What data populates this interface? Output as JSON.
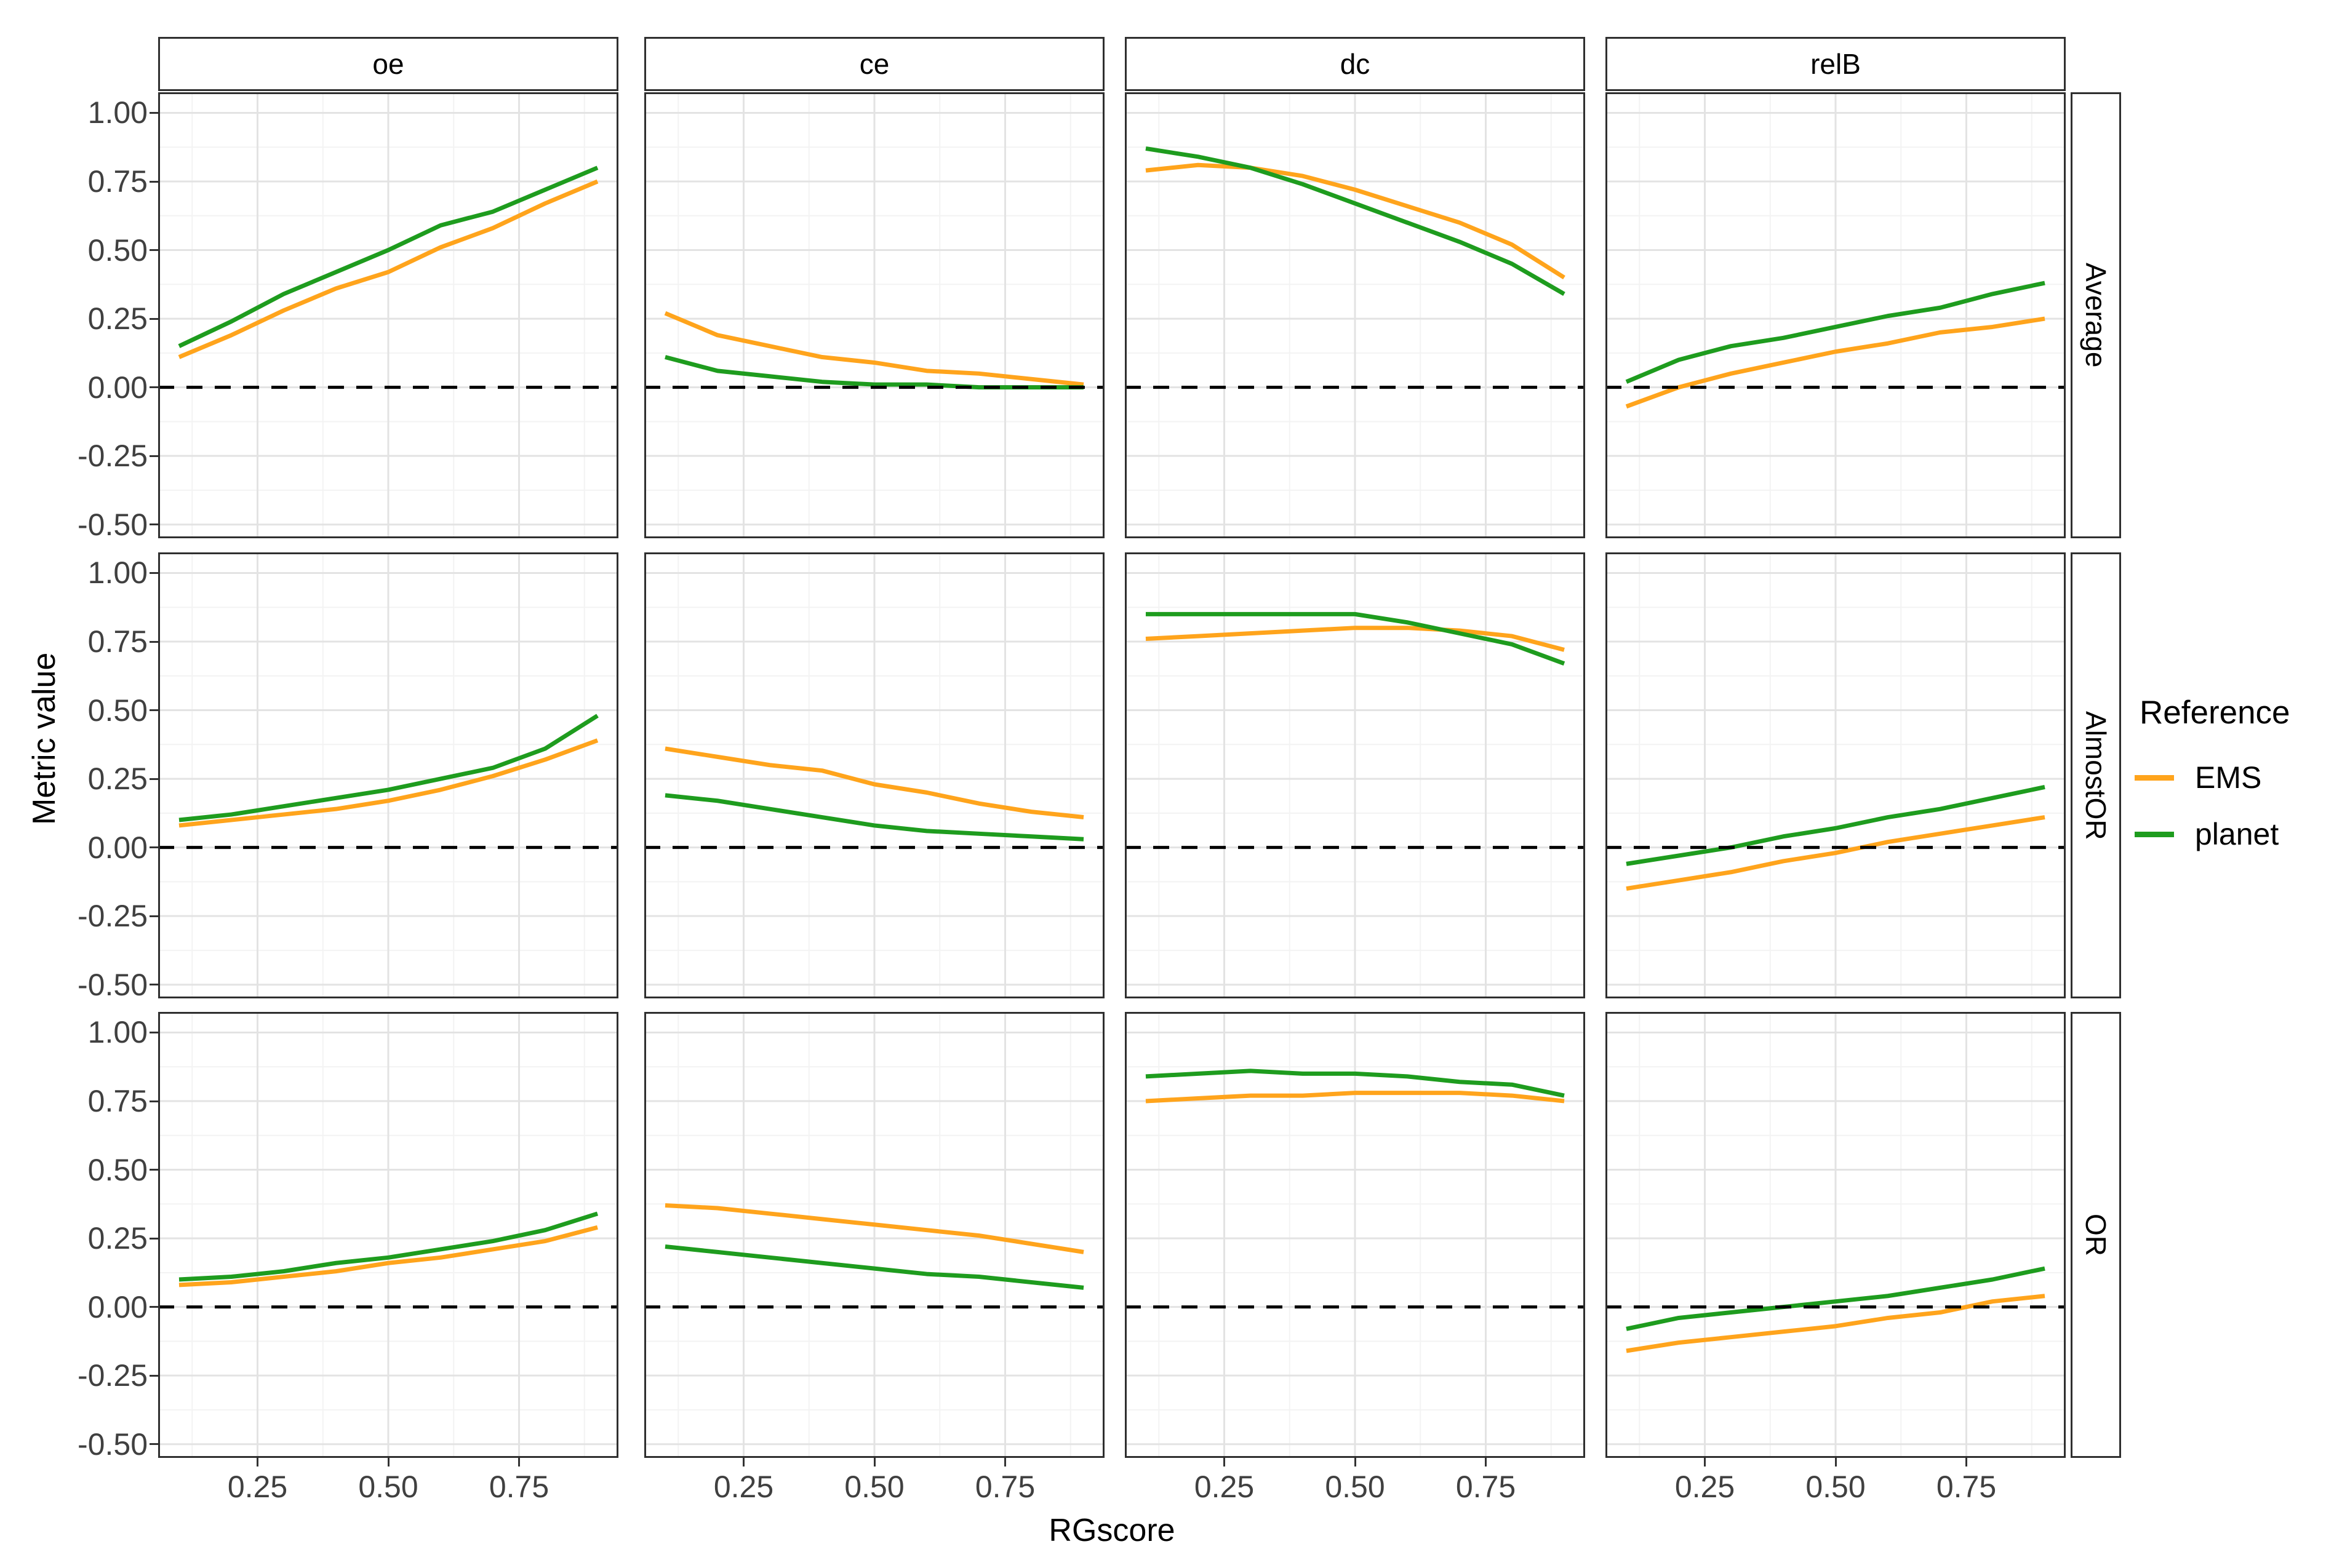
{
  "figure": {
    "x_axis_title": "RGscore",
    "y_axis_title": "Metric value"
  },
  "chart_data": {
    "type": "line",
    "title": "",
    "xlabel": "RGscore",
    "ylabel": "Metric value",
    "grid": true,
    "legend_position": "right",
    "x": [
      0.1,
      0.2,
      0.3,
      0.4,
      0.5,
      0.6,
      0.7,
      0.8,
      0.9
    ],
    "xlim": [
      0.06,
      0.94
    ],
    "ylim": [
      -0.55,
      1.075
    ],
    "x_ticks": {
      "values": [
        0.25,
        0.5,
        0.75
      ],
      "labels": [
        "0.25",
        "0.50",
        "0.75"
      ]
    },
    "y_ticks": {
      "values": [
        1.0,
        0.75,
        0.5,
        0.25,
        0.0,
        -0.25,
        -0.5
      ],
      "labels": [
        "1.00",
        "0.75",
        "0.50",
        "0.25",
        "0.00",
        "-0.25",
        "-0.50"
      ]
    },
    "zero_reference_line": 0.0,
    "facet_cols": [
      "oe",
      "ce",
      "dc",
      "relB"
    ],
    "facet_rows": [
      "Average",
      "AlmostOR",
      "OR"
    ],
    "legend": {
      "title": "Reference",
      "entries": [
        {
          "name": "EMS",
          "label": "EMS",
          "color": "#FFA41C"
        },
        {
          "name": "planet",
          "label": "planet",
          "color": "#1E9C1E"
        }
      ]
    },
    "panels": [
      {
        "row": "Average",
        "col": "oe",
        "series": {
          "EMS": [
            0.11,
            0.19,
            0.28,
            0.36,
            0.42,
            0.51,
            0.58,
            0.67,
            0.75
          ],
          "planet": [
            0.15,
            0.24,
            0.34,
            0.42,
            0.5,
            0.59,
            0.64,
            0.72,
            0.8
          ]
        }
      },
      {
        "row": "Average",
        "col": "ce",
        "series": {
          "EMS": [
            0.27,
            0.19,
            0.15,
            0.11,
            0.09,
            0.06,
            0.05,
            0.03,
            0.01
          ],
          "planet": [
            0.11,
            0.06,
            0.04,
            0.02,
            0.01,
            0.01,
            0.0,
            0.0,
            0.0
          ]
        }
      },
      {
        "row": "Average",
        "col": "dc",
        "series": {
          "EMS": [
            0.79,
            0.81,
            0.8,
            0.77,
            0.72,
            0.66,
            0.6,
            0.52,
            0.4
          ],
          "planet": [
            0.87,
            0.84,
            0.8,
            0.74,
            0.67,
            0.6,
            0.53,
            0.45,
            0.34
          ]
        }
      },
      {
        "row": "Average",
        "col": "relB",
        "series": {
          "EMS": [
            -0.07,
            0.0,
            0.05,
            0.09,
            0.13,
            0.16,
            0.2,
            0.22,
            0.25
          ],
          "planet": [
            0.02,
            0.1,
            0.15,
            0.18,
            0.22,
            0.26,
            0.29,
            0.34,
            0.38
          ]
        }
      },
      {
        "row": "AlmostOR",
        "col": "oe",
        "series": {
          "EMS": [
            0.08,
            0.1,
            0.12,
            0.14,
            0.17,
            0.21,
            0.26,
            0.32,
            0.39
          ],
          "planet": [
            0.1,
            0.12,
            0.15,
            0.18,
            0.21,
            0.25,
            0.29,
            0.36,
            0.48
          ]
        }
      },
      {
        "row": "AlmostOR",
        "col": "ce",
        "series": {
          "EMS": [
            0.36,
            0.33,
            0.3,
            0.28,
            0.23,
            0.2,
            0.16,
            0.13,
            0.11
          ],
          "planet": [
            0.19,
            0.17,
            0.14,
            0.11,
            0.08,
            0.06,
            0.05,
            0.04,
            0.03
          ]
        }
      },
      {
        "row": "AlmostOR",
        "col": "dc",
        "series": {
          "EMS": [
            0.76,
            0.77,
            0.78,
            0.79,
            0.8,
            0.8,
            0.79,
            0.77,
            0.72
          ],
          "planet": [
            0.85,
            0.85,
            0.85,
            0.85,
            0.85,
            0.82,
            0.78,
            0.74,
            0.67
          ]
        }
      },
      {
        "row": "AlmostOR",
        "col": "relB",
        "series": {
          "EMS": [
            -0.15,
            -0.12,
            -0.09,
            -0.05,
            -0.02,
            0.02,
            0.05,
            0.08,
            0.11
          ],
          "planet": [
            -0.06,
            -0.03,
            0.0,
            0.04,
            0.07,
            0.11,
            0.14,
            0.18,
            0.22
          ]
        }
      },
      {
        "row": "OR",
        "col": "oe",
        "series": {
          "EMS": [
            0.08,
            0.09,
            0.11,
            0.13,
            0.16,
            0.18,
            0.21,
            0.24,
            0.29
          ],
          "planet": [
            0.1,
            0.11,
            0.13,
            0.16,
            0.18,
            0.21,
            0.24,
            0.28,
            0.34
          ]
        }
      },
      {
        "row": "OR",
        "col": "ce",
        "series": {
          "EMS": [
            0.37,
            0.36,
            0.34,
            0.32,
            0.3,
            0.28,
            0.26,
            0.23,
            0.2
          ],
          "planet": [
            0.22,
            0.2,
            0.18,
            0.16,
            0.14,
            0.12,
            0.11,
            0.09,
            0.07
          ]
        }
      },
      {
        "row": "OR",
        "col": "dc",
        "series": {
          "EMS": [
            0.75,
            0.76,
            0.77,
            0.77,
            0.78,
            0.78,
            0.78,
            0.77,
            0.75
          ],
          "planet": [
            0.84,
            0.85,
            0.86,
            0.85,
            0.85,
            0.84,
            0.82,
            0.81,
            0.77
          ]
        }
      },
      {
        "row": "OR",
        "col": "relB",
        "series": {
          "EMS": [
            -0.16,
            -0.13,
            -0.11,
            -0.09,
            -0.07,
            -0.04,
            -0.02,
            0.02,
            0.04
          ],
          "planet": [
            -0.08,
            -0.04,
            -0.02,
            0.0,
            0.02,
            0.04,
            0.07,
            0.1,
            0.14
          ]
        }
      }
    ]
  }
}
